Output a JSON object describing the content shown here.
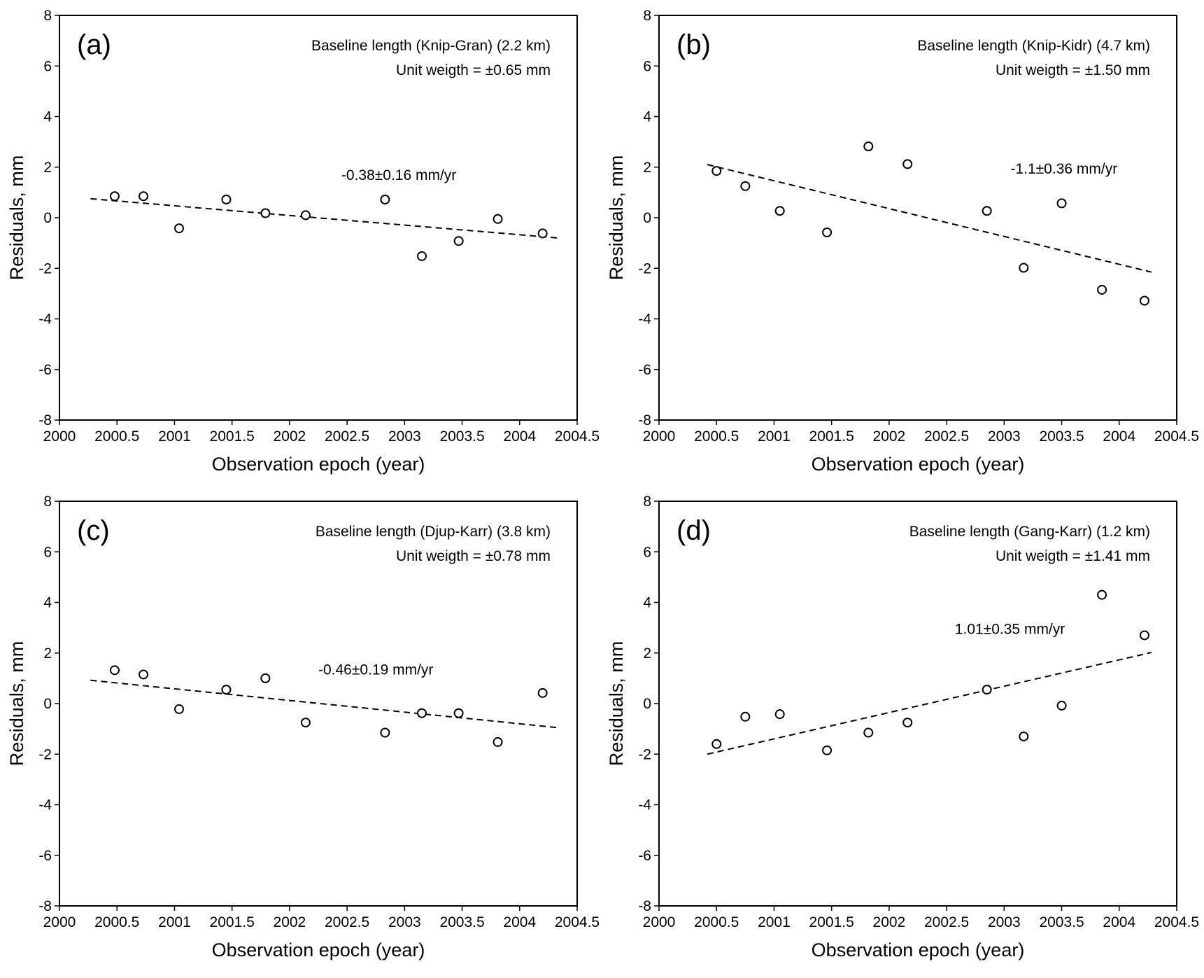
{
  "figure": {
    "colors": {
      "axis": "#000000",
      "marker": "#000000",
      "trend": "#000000",
      "background": "#ffffff"
    }
  },
  "chart_data": [
    {
      "id": "a",
      "type": "scatter",
      "panel_label": "(a)",
      "title": "Baseline length (Knip-Gran) (2.2 km)",
      "subtitle": "Unit weigth = ±0.65 mm",
      "xlabel": "Observation epoch (year)",
      "ylabel": "Residuals, mm",
      "xlim": [
        2000,
        2004.5
      ],
      "ylim": [
        -8,
        8
      ],
      "xticks": [
        2000,
        2000.5,
        2001,
        2001.5,
        2002,
        2002.5,
        2003,
        2003.5,
        2004,
        2004.5
      ],
      "xtick_labels": [
        "2000",
        "2000.5",
        "2001",
        "2001.5",
        "2002",
        "2002.5",
        "2003",
        "2003.5",
        "2004",
        "2004.5"
      ],
      "yticks": [
        -8,
        -6,
        -4,
        -2,
        0,
        2,
        4,
        6,
        8
      ],
      "ytick_labels": [
        "-8",
        "-6",
        "-4",
        "-2",
        "0",
        "2",
        "4",
        "6",
        "8"
      ],
      "series": [
        {
          "name": "Residuals",
          "x": [
            2000.48,
            2000.73,
            2001.04,
            2001.45,
            2001.79,
            2002.14,
            2002.83,
            2003.15,
            2003.47,
            2003.81,
            2004.2
          ],
          "y": [
            0.85,
            0.85,
            -0.42,
            0.72,
            0.18,
            0.1,
            0.72,
            -1.52,
            -0.92,
            -0.05,
            -0.62
          ]
        }
      ],
      "trend": {
        "label": "-0.38±0.16 mm/yr",
        "label_at": [
          2002.95,
          1.5
        ],
        "x": [
          2000.27,
          2004.33
        ],
        "y": [
          0.75,
          -0.8
        ]
      }
    },
    {
      "id": "b",
      "type": "scatter",
      "panel_label": "(b)",
      "title": "Baseline length (Knip-Kidr) (4.7 km)",
      "subtitle": "Unit weigth = ±1.50 mm",
      "xlabel": "Observation epoch (year)",
      "ylabel": "Residuals, mm",
      "xlim": [
        2000,
        2004.5
      ],
      "ylim": [
        -8,
        8
      ],
      "xticks": [
        2000,
        2000.5,
        2001,
        2001.5,
        2002,
        2002.5,
        2003,
        2003.5,
        2004,
        2004.5
      ],
      "xtick_labels": [
        "2000",
        "2000.5",
        "2001",
        "2001.5",
        "2002",
        "2002.5",
        "2003",
        "2003.5",
        "2004",
        "2004.5"
      ],
      "yticks": [
        -8,
        -6,
        -4,
        -2,
        0,
        2,
        4,
        6,
        8
      ],
      "ytick_labels": [
        "-8",
        "-6",
        "-4",
        "-2",
        "0",
        "2",
        "4",
        "6",
        "8"
      ],
      "series": [
        {
          "name": "Residuals",
          "x": [
            2000.5,
            2000.75,
            2001.05,
            2001.46,
            2001.82,
            2002.16,
            2002.85,
            2003.17,
            2003.5,
            2003.85,
            2004.22
          ],
          "y": [
            1.85,
            1.25,
            0.27,
            -0.58,
            2.82,
            2.12,
            0.27,
            -1.98,
            0.57,
            -2.85,
            -3.28
          ]
        }
      ],
      "trend": {
        "label": "-1.1±0.36 mm/yr",
        "label_at": [
          2003.52,
          1.75
        ],
        "x": [
          2000.42,
          2004.28
        ],
        "y": [
          2.1,
          -2.15
        ]
      }
    },
    {
      "id": "c",
      "type": "scatter",
      "panel_label": "(c)",
      "title": "Baseline length (Djup-Karr) (3.8 km)",
      "subtitle": "Unit weigth = ±0.78 mm",
      "xlabel": "Observation epoch (year)",
      "ylabel": "Residuals, mm",
      "xlim": [
        2000,
        2004.5
      ],
      "ylim": [
        -8,
        8
      ],
      "xticks": [
        2000,
        2000.5,
        2001,
        2001.5,
        2002,
        2002.5,
        2003,
        2003.5,
        2004,
        2004.5
      ],
      "xtick_labels": [
        "2000",
        "2000.5",
        "2001",
        "2001.5",
        "2002",
        "2002.5",
        "2003",
        "2003.5",
        "2004",
        "2004.5"
      ],
      "yticks": [
        -8,
        -6,
        -4,
        -2,
        0,
        2,
        4,
        6,
        8
      ],
      "ytick_labels": [
        "-8",
        "-6",
        "-4",
        "-2",
        "0",
        "2",
        "4",
        "6",
        "8"
      ],
      "series": [
        {
          "name": "Residuals",
          "x": [
            2000.48,
            2000.73,
            2001.04,
            2001.45,
            2001.79,
            2002.14,
            2002.83,
            2003.15,
            2003.47,
            2003.81,
            2004.2
          ],
          "y": [
            1.32,
            1.15,
            -0.22,
            0.55,
            1.0,
            -0.75,
            -1.15,
            -0.38,
            -0.38,
            -1.52,
            0.42
          ]
        }
      ],
      "trend": {
        "label": "-0.46±0.19 mm/yr",
        "label_at": [
          2002.75,
          1.15
        ],
        "x": [
          2000.27,
          2004.33
        ],
        "y": [
          0.92,
          -0.95
        ]
      }
    },
    {
      "id": "d",
      "type": "scatter",
      "panel_label": "(d)",
      "title": "Baseline length (Gang-Karr) (1.2 km)",
      "subtitle": "Unit weigth = ±1.41 mm",
      "xlabel": "Observation epoch (year)",
      "ylabel": "Residuals, mm",
      "xlim": [
        2000,
        2004.5
      ],
      "ylim": [
        -8,
        8
      ],
      "xticks": [
        2000,
        2000.5,
        2001,
        2001.5,
        2002,
        2002.5,
        2003,
        2003.5,
        2004,
        2004.5
      ],
      "xtick_labels": [
        "2000",
        "2000.5",
        "2001",
        "2001.5",
        "2002",
        "2002.5",
        "2003",
        "2003.5",
        "2004",
        "2004.5"
      ],
      "yticks": [
        -8,
        -6,
        -4,
        -2,
        0,
        2,
        4,
        6,
        8
      ],
      "ytick_labels": [
        "-8",
        "-6",
        "-4",
        "-2",
        "0",
        "2",
        "4",
        "6",
        "8"
      ],
      "series": [
        {
          "name": "Residuals",
          "x": [
            2000.5,
            2000.75,
            2001.05,
            2001.46,
            2001.82,
            2002.16,
            2002.85,
            2003.17,
            2003.5,
            2003.85,
            2004.22
          ],
          "y": [
            -1.6,
            -0.52,
            -0.42,
            -1.85,
            -1.15,
            -0.75,
            0.55,
            -1.3,
            -0.08,
            4.3,
            2.7
          ]
        }
      ],
      "trend": {
        "label": "1.01±0.35 mm/yr",
        "label_at": [
          2003.05,
          2.75
        ],
        "x": [
          2000.42,
          2004.28
        ],
        "y": [
          -2.0,
          2.02
        ]
      }
    }
  ]
}
